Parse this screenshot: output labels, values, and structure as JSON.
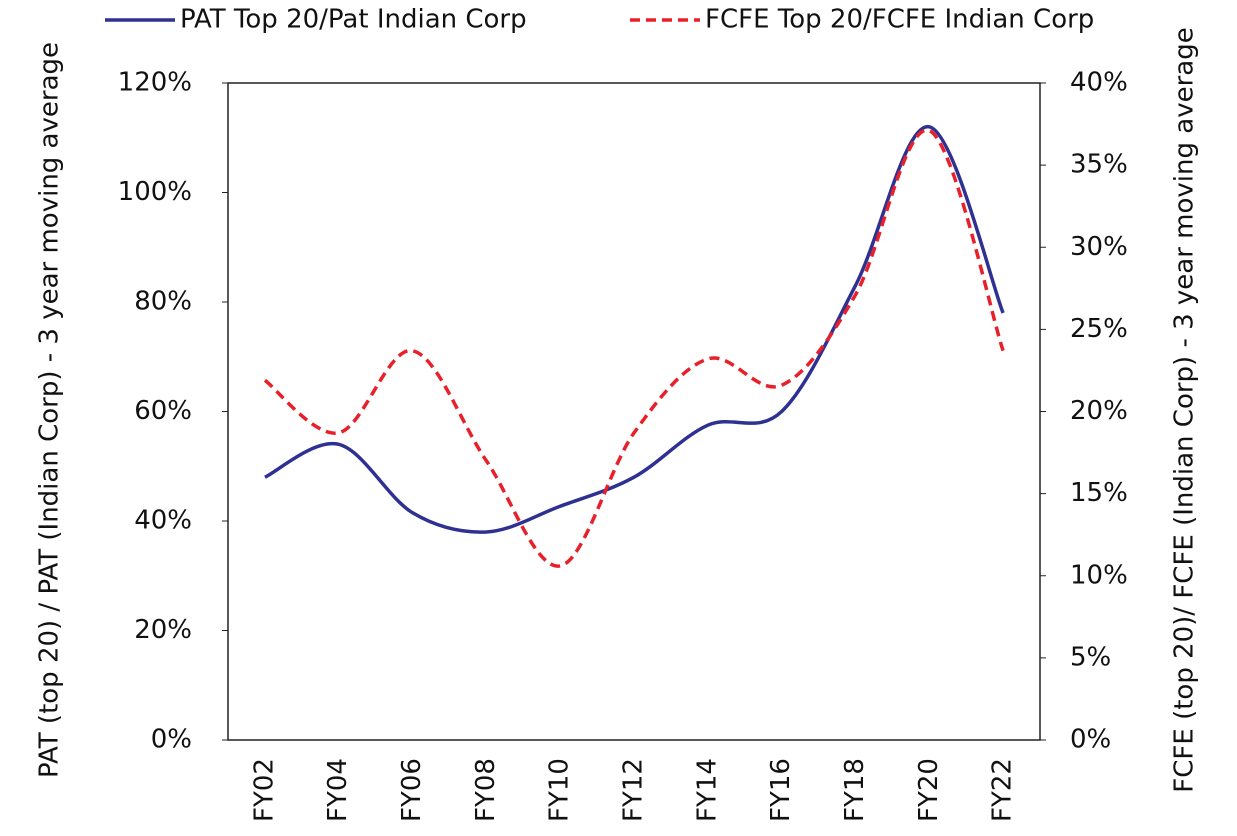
{
  "chart_data": {
    "type": "line",
    "categories": [
      "FY02",
      "FY04",
      "FY06",
      "FY08",
      "FY10",
      "FY12",
      "FY14",
      "FY16",
      "FY18",
      "FY20",
      "FY22"
    ],
    "series": [
      {
        "name": "PAT Top 20/Pat Indian Corp",
        "color": "#2e3192",
        "dash": false,
        "values": [
          48,
          54,
          41.5,
          38,
          42.7,
          48,
          57.5,
          60,
          83,
          112,
          78
        ]
      },
      {
        "name": "FCFE Top 20/FCFE Indian Corp",
        "color": "#e8202a",
        "dash": true,
        "axis": "y2",
        "values": [
          21.9,
          18.7,
          23.7,
          17,
          10.6,
          18.7,
          23.2,
          21.6,
          27.1,
          37.1,
          23.7
        ]
      }
    ],
    "ylabel": "PAT (top 20) / PAT (Indian Corp) - 3 year moving average",
    "y2label": "FCFE (top 20)/ FCFE (Indian Corp) - 3 year moving average",
    "ylim": [
      0,
      120
    ],
    "yticks": [
      {
        "value": 0,
        "label": "0%"
      },
      {
        "value": 20,
        "label": "20%"
      },
      {
        "value": 40,
        "label": "40%"
      },
      {
        "value": 60,
        "label": "60%"
      },
      {
        "value": 80,
        "label": "80%"
      },
      {
        "value": 100,
        "label": "100%"
      },
      {
        "value": 120,
        "label": "120%"
      }
    ],
    "y2lim": [
      0,
      40
    ],
    "y2ticks": [
      {
        "value": 0,
        "label": "0%"
      },
      {
        "value": 5,
        "label": "5%"
      },
      {
        "value": 10,
        "label": "10%"
      },
      {
        "value": 15,
        "label": "15%"
      },
      {
        "value": 20,
        "label": "20%"
      },
      {
        "value": 25,
        "label": "25%"
      },
      {
        "value": 30,
        "label": "30%"
      },
      {
        "value": 35,
        "label": "35%"
      },
      {
        "value": 40,
        "label": "40%"
      }
    ],
    "legend": "top"
  }
}
